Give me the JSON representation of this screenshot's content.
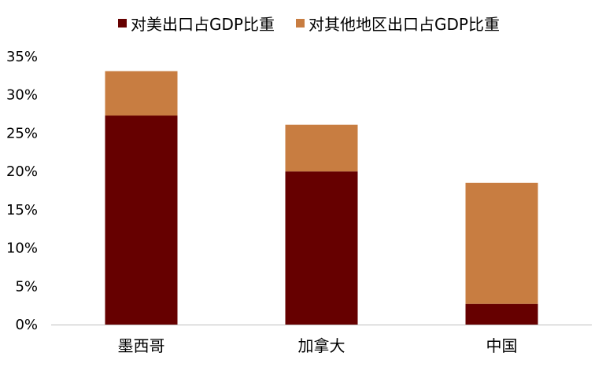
{
  "chart_data": {
    "type": "bar",
    "stacked": true,
    "categories": [
      "墨西哥",
      "加拿大",
      "中国"
    ],
    "series": [
      {
        "name": "对美出口占GDP比重",
        "values": [
          27.3,
          20.0,
          2.7
        ],
        "color": "#660000"
      },
      {
        "name": "对其他地区出口占GDP比重",
        "values": [
          5.8,
          6.1,
          15.8
        ],
        "color": "#C87D41"
      }
    ],
    "y_ticks": [
      {
        "value": 0,
        "label": "0%"
      },
      {
        "value": 5,
        "label": "5%"
      },
      {
        "value": 10,
        "label": "10%"
      },
      {
        "value": 15,
        "label": "15%"
      },
      {
        "value": 20,
        "label": "20%"
      },
      {
        "value": 25,
        "label": "25%"
      },
      {
        "value": 30,
        "label": "30%"
      },
      {
        "value": 35,
        "label": "35%"
      }
    ],
    "ylim": [
      0,
      35
    ],
    "grid": false,
    "legend_position": "top-center",
    "title": "",
    "xlabel": "",
    "ylabel": ""
  }
}
